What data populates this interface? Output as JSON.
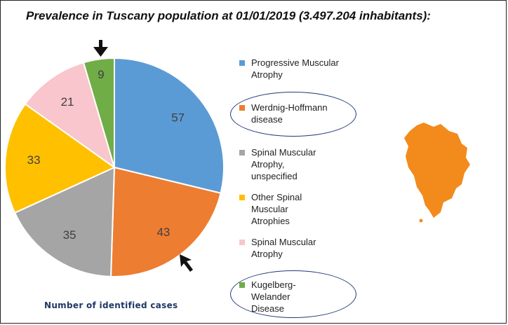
{
  "title": "Prevalence in Tuscany population at 01/01/2019 (3.497.204 inhabitants):",
  "caption": "Number of identified cases",
  "chart_data": {
    "type": "pie",
    "title": "Prevalence in Tuscany population at 01/01/2019 (3.497.204 inhabitants):",
    "caption": "Number of identified cases",
    "slices": [
      {
        "label": "Progressive Muscular Atrophy",
        "value": 57,
        "color": "#5b9bd5",
        "highlighted": false
      },
      {
        "label": "Werdnig-Hoffmann disease",
        "value": 43,
        "color": "#ed7d31",
        "highlighted": true
      },
      {
        "label": "Spinal Muscular Atrophy, unspecified",
        "value": 35,
        "color": "#a5a5a5",
        "highlighted": false
      },
      {
        "label": "Other Spinal Muscular Atrophies",
        "value": 33,
        "color": "#ffc000",
        "highlighted": false
      },
      {
        "label": "Spinal Muscular Atrophy",
        "value": 21,
        "color": "#f8c6cc",
        "highlighted": false
      },
      {
        "label": "Kugelberg-Welander Disease",
        "value": 9,
        "color": "#70ad47",
        "highlighted": true
      }
    ],
    "start_angle_deg": 0,
    "direction": "clockwise",
    "legend_position": "right"
  },
  "legend": {
    "items": [
      {
        "label": "Progressive Muscular Atrophy",
        "color": "#5b9bd5"
      },
      {
        "label": "Werdnig-Hoffmann disease",
        "color": "#ed7d31"
      },
      {
        "label": "Spinal Muscular Atrophy, unspecified",
        "color": "#a5a5a5"
      },
      {
        "label": "Other Spinal Muscular Atrophies",
        "color": "#ffc000"
      },
      {
        "label": "Spinal Muscular Atrophy",
        "color": "#f8c6cc"
      },
      {
        "label": "Kugelberg-Welander Disease",
        "color": "#70ad47"
      }
    ]
  },
  "annotations": {
    "arrows": [
      "arrow-pointing-kugelberg-welander-slice",
      "arrow-pointing-werdnig-hoffmann-slice"
    ],
    "map_icon": "tuscany-region-map-icon",
    "map_color": "#f28b1c",
    "ellipse_color": "#1f3a7a"
  }
}
